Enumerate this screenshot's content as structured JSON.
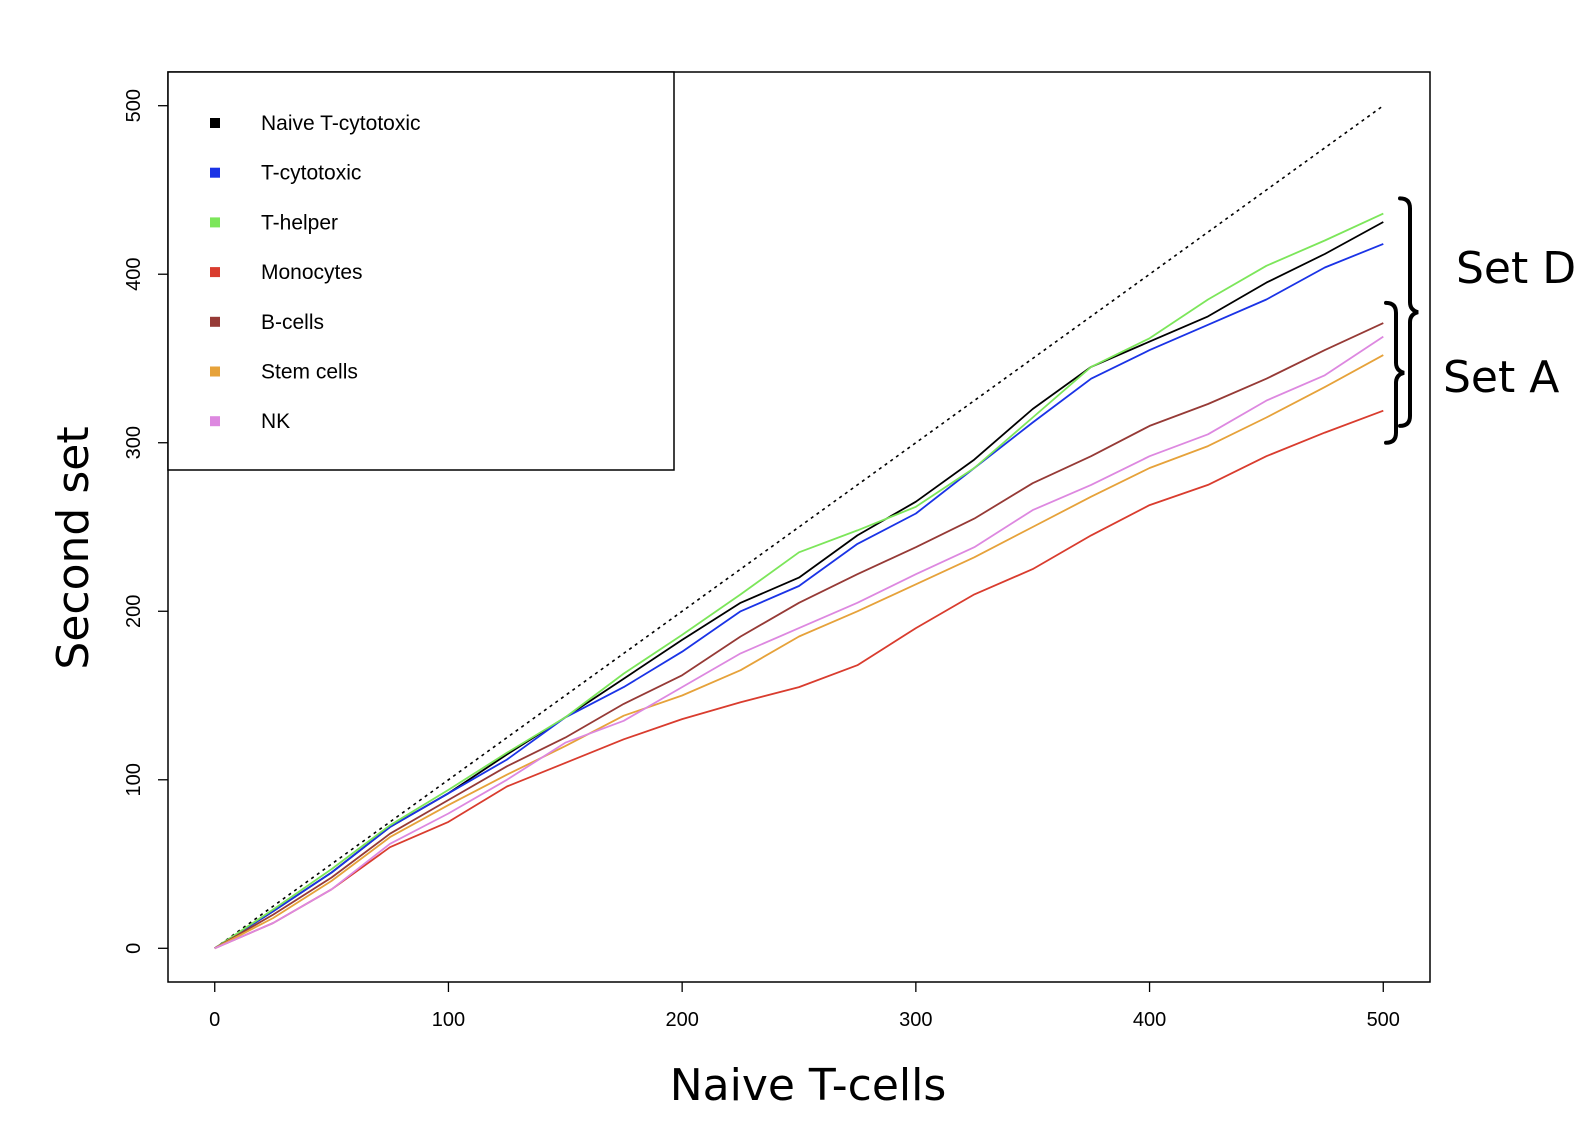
{
  "chart_data": {
    "type": "line",
    "title": "",
    "xlabel": "Naive T-cells",
    "ylabel": "Second set",
    "xlim": [
      -20,
      520
    ],
    "ylim": [
      -20,
      520
    ],
    "xticks": [
      0,
      100,
      200,
      300,
      400,
      500
    ],
    "yticks": [
      0,
      100,
      200,
      300,
      400,
      500
    ],
    "grid": false,
    "legend_position": "top-left",
    "reference_line": {
      "style": "dotted",
      "color": "#000000",
      "x": [
        0,
        500
      ],
      "y": [
        0,
        500
      ]
    },
    "series": [
      {
        "name": "Naive T-cytotoxic",
        "color": "#000000",
        "x": [
          0,
          25,
          50,
          75,
          100,
          125,
          150,
          175,
          200,
          225,
          250,
          275,
          300,
          325,
          350,
          375,
          400,
          425,
          450,
          475,
          500
        ],
        "y": [
          0,
          22,
          45,
          72,
          92,
          115,
          137,
          160,
          183,
          205,
          220,
          245,
          265,
          290,
          320,
          345,
          360,
          375,
          395,
          412,
          431
        ]
      },
      {
        "name": "T-cytotoxic",
        "color": "#1a33e6",
        "x": [
          0,
          25,
          50,
          75,
          100,
          125,
          150,
          175,
          200,
          225,
          250,
          275,
          300,
          325,
          350,
          375,
          400,
          425,
          450,
          475,
          500
        ],
        "y": [
          0,
          22,
          45,
          72,
          92,
          112,
          137,
          155,
          176,
          200,
          215,
          240,
          258,
          285,
          312,
          338,
          355,
          370,
          385,
          404,
          418
        ]
      },
      {
        "name": "T-helper",
        "color": "#7ce65a",
        "x": [
          0,
          25,
          50,
          75,
          100,
          125,
          150,
          175,
          200,
          225,
          250,
          275,
          300,
          325,
          350,
          375,
          400,
          425,
          450,
          475,
          500
        ],
        "y": [
          0,
          23,
          47,
          73,
          94,
          116,
          137,
          163,
          186,
          210,
          235,
          248,
          262,
          285,
          315,
          345,
          362,
          385,
          405,
          420,
          436
        ]
      },
      {
        "name": "Monocytes",
        "color": "#d93c2e",
        "x": [
          0,
          25,
          50,
          75,
          100,
          125,
          150,
          175,
          200,
          225,
          250,
          275,
          300,
          325,
          350,
          375,
          400,
          425,
          450,
          475,
          500
        ],
        "y": [
          0,
          15,
          35,
          60,
          75,
          96,
          110,
          124,
          136,
          146,
          155,
          168,
          190,
          210,
          225,
          245,
          263,
          275,
          292,
          306,
          319
        ]
      },
      {
        "name": "B-cells",
        "color": "#963a36",
        "x": [
          0,
          25,
          50,
          75,
          100,
          125,
          150,
          175,
          200,
          225,
          250,
          275,
          300,
          325,
          350,
          375,
          400,
          425,
          450,
          475,
          500
        ],
        "y": [
          0,
          20,
          42,
          68,
          88,
          108,
          125,
          145,
          162,
          185,
          205,
          222,
          238,
          255,
          276,
          292,
          310,
          323,
          338,
          355,
          371
        ]
      },
      {
        "name": "Stem cells",
        "color": "#e6a23a",
        "x": [
          0,
          25,
          50,
          75,
          100,
          125,
          150,
          175,
          200,
          225,
          250,
          275,
          300,
          325,
          350,
          375,
          400,
          425,
          450,
          475,
          500
        ],
        "y": [
          0,
          18,
          40,
          66,
          85,
          103,
          120,
          138,
          150,
          165,
          185,
          200,
          216,
          232,
          250,
          268,
          285,
          298,
          315,
          333,
          352
        ]
      },
      {
        "name": "NK",
        "color": "#dd88e0",
        "x": [
          0,
          25,
          50,
          75,
          100,
          125,
          150,
          175,
          200,
          225,
          250,
          275,
          300,
          325,
          350,
          375,
          400,
          425,
          450,
          475,
          500
        ],
        "y": [
          0,
          15,
          35,
          62,
          80,
          100,
          122,
          135,
          155,
          175,
          190,
          205,
          222,
          238,
          260,
          275,
          292,
          305,
          325,
          340,
          363
        ]
      }
    ],
    "annotations": [
      {
        "text": "Set D",
        "y_range": [
          310,
          445
        ]
      },
      {
        "text": "Set A",
        "y_range": [
          300,
          383
        ]
      }
    ]
  }
}
